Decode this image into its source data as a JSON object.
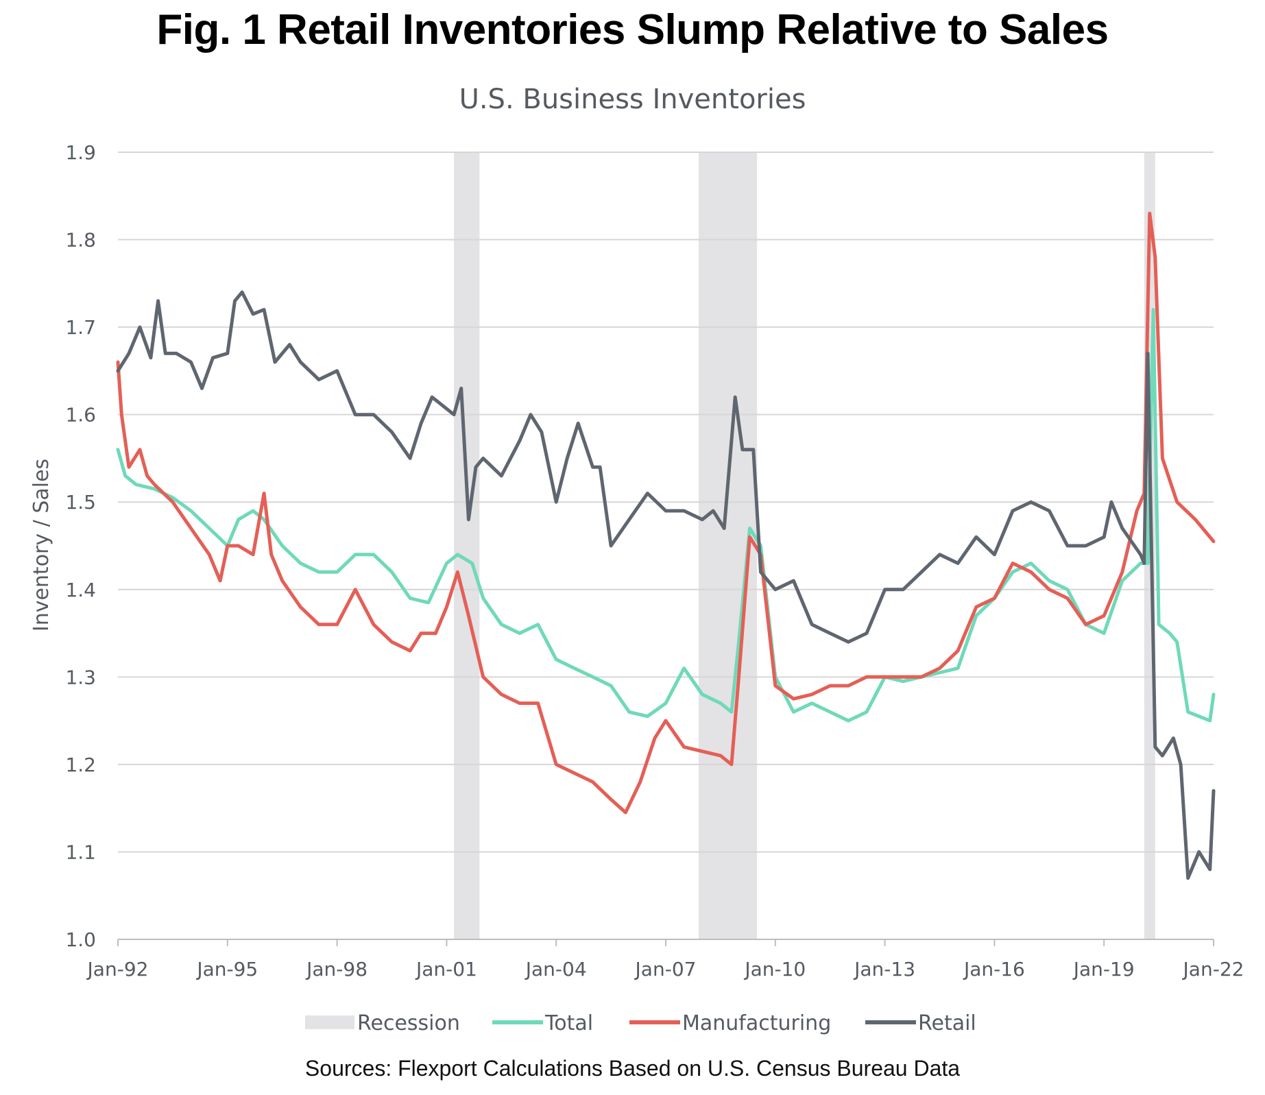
{
  "colors": {
    "recession": "#e3e2e4",
    "total": "#6fd9b9",
    "manufacturing": "#e45f56",
    "retail": "#5f6670",
    "grid": "#d6d6d6",
    "axis_text": "#555a60"
  },
  "chart_data": {
    "type": "line",
    "title": "Fig. 1 Retail Inventories Slump Relative to Sales",
    "subtitle": "U.S. Business Inventories",
    "ylabel": "Inventory / Sales",
    "xlabel": "",
    "ylim": [
      1.0,
      1.9
    ],
    "xlim": [
      1992.0,
      2022.0
    ],
    "yticks": [
      "1.0",
      "1.1",
      "1.2",
      "1.3",
      "1.4",
      "1.5",
      "1.6",
      "1.7",
      "1.8",
      "1.9"
    ],
    "xtick_labels": [
      "Jan-92",
      "Jan-95",
      "Jan-98",
      "Jan-01",
      "Jan-04",
      "Jan-07",
      "Jan-10",
      "Jan-13",
      "Jan-16",
      "Jan-19",
      "Jan-22"
    ],
    "xtick_years": [
      1992,
      1995,
      1998,
      2001,
      2004,
      2007,
      2010,
      2013,
      2016,
      2019,
      2022
    ],
    "grid": true,
    "legend_position": "bottom",
    "recessions": [
      {
        "start": 2001.2,
        "end": 2001.9
      },
      {
        "start": 2007.9,
        "end": 2009.5
      },
      {
        "start": 2020.1,
        "end": 2020.4
      }
    ],
    "series": [
      {
        "name": "Total",
        "key": "total",
        "x": [
          1992.0,
          1992.2,
          1992.5,
          1993.0,
          1993.5,
          1994.0,
          1994.5,
          1995.0,
          1995.3,
          1995.7,
          1996.0,
          1996.5,
          1997.0,
          1997.5,
          1998.0,
          1998.5,
          1999.0,
          1999.5,
          2000.0,
          2000.5,
          2001.0,
          2001.3,
          2001.7,
          2002.0,
          2002.5,
          2003.0,
          2003.5,
          2004.0,
          2004.5,
          2005.0,
          2005.5,
          2006.0,
          2006.5,
          2007.0,
          2007.5,
          2008.0,
          2008.5,
          2008.8,
          2009.0,
          2009.3,
          2009.6,
          2010.0,
          2010.5,
          2011.0,
          2011.5,
          2012.0,
          2012.5,
          2013.0,
          2013.5,
          2014.0,
          2014.5,
          2015.0,
          2015.5,
          2016.0,
          2016.5,
          2017.0,
          2017.5,
          2018.0,
          2018.5,
          2019.0,
          2019.5,
          2020.0,
          2020.2,
          2020.35,
          2020.5,
          2020.8,
          2021.0,
          2021.3,
          2021.6,
          2021.9,
          2022.0
        ],
        "values": [
          1.56,
          1.53,
          1.52,
          1.515,
          1.505,
          1.49,
          1.47,
          1.45,
          1.48,
          1.49,
          1.48,
          1.45,
          1.43,
          1.42,
          1.42,
          1.44,
          1.44,
          1.42,
          1.39,
          1.385,
          1.43,
          1.44,
          1.43,
          1.39,
          1.36,
          1.35,
          1.36,
          1.32,
          1.31,
          1.3,
          1.29,
          1.26,
          1.255,
          1.27,
          1.31,
          1.28,
          1.27,
          1.26,
          1.34,
          1.47,
          1.45,
          1.3,
          1.26,
          1.27,
          1.26,
          1.25,
          1.26,
          1.3,
          1.295,
          1.3,
          1.305,
          1.31,
          1.37,
          1.39,
          1.42,
          1.43,
          1.41,
          1.4,
          1.36,
          1.35,
          1.41,
          1.43,
          1.43,
          1.72,
          1.36,
          1.35,
          1.34,
          1.26,
          1.255,
          1.25,
          1.28
        ]
      },
      {
        "name": "Manufacturing",
        "key": "manufacturing",
        "x": [
          1992.0,
          1992.1,
          1992.3,
          1992.6,
          1992.8,
          1993.0,
          1993.5,
          1994.0,
          1994.5,
          1994.8,
          1995.0,
          1995.3,
          1995.7,
          1996.0,
          1996.2,
          1996.5,
          1997.0,
          1997.5,
          1998.0,
          1998.5,
          1999.0,
          1999.5,
          2000.0,
          2000.3,
          2000.7,
          2001.0,
          2001.3,
          2001.6,
          2002.0,
          2002.5,
          2003.0,
          2003.5,
          2004.0,
          2004.5,
          2005.0,
          2005.5,
          2005.9,
          2006.3,
          2006.7,
          2007.0,
          2007.5,
          2008.0,
          2008.5,
          2008.8,
          2009.0,
          2009.3,
          2009.6,
          2010.0,
          2010.5,
          2011.0,
          2011.5,
          2012.0,
          2012.5,
          2013.0,
          2013.5,
          2014.0,
          2014.5,
          2015.0,
          2015.5,
          2016.0,
          2016.5,
          2017.0,
          2017.5,
          2018.0,
          2018.5,
          2019.0,
          2019.5,
          2019.9,
          2020.1,
          2020.25,
          2020.4,
          2020.6,
          2021.0,
          2021.5,
          2022.0
        ],
        "values": [
          1.66,
          1.6,
          1.54,
          1.56,
          1.53,
          1.52,
          1.5,
          1.47,
          1.44,
          1.41,
          1.45,
          1.45,
          1.44,
          1.51,
          1.44,
          1.41,
          1.38,
          1.36,
          1.36,
          1.4,
          1.36,
          1.34,
          1.33,
          1.35,
          1.35,
          1.38,
          1.42,
          1.37,
          1.3,
          1.28,
          1.27,
          1.27,
          1.2,
          1.19,
          1.18,
          1.16,
          1.145,
          1.18,
          1.23,
          1.25,
          1.22,
          1.215,
          1.21,
          1.2,
          1.3,
          1.46,
          1.44,
          1.29,
          1.275,
          1.28,
          1.29,
          1.29,
          1.3,
          1.3,
          1.3,
          1.3,
          1.31,
          1.33,
          1.38,
          1.39,
          1.43,
          1.42,
          1.4,
          1.39,
          1.36,
          1.37,
          1.42,
          1.49,
          1.51,
          1.83,
          1.78,
          1.55,
          1.5,
          1.48,
          1.455
        ]
      },
      {
        "name": "Retail",
        "key": "retail",
        "x": [
          1992.0,
          1992.3,
          1992.6,
          1992.9,
          1993.1,
          1993.3,
          1993.6,
          1994.0,
          1994.3,
          1994.6,
          1995.0,
          1995.2,
          1995.4,
          1995.7,
          1996.0,
          1996.3,
          1996.7,
          1997.0,
          1997.5,
          1998.0,
          1998.5,
          1999.0,
          1999.5,
          2000.0,
          2000.3,
          2000.6,
          2000.9,
          2001.2,
          2001.4,
          2001.6,
          2001.8,
          2002.0,
          2002.5,
          2003.0,
          2003.3,
          2003.6,
          2004.0,
          2004.3,
          2004.6,
          2005.0,
          2005.2,
          2005.5,
          2006.0,
          2006.5,
          2007.0,
          2007.5,
          2008.0,
          2008.3,
          2008.6,
          2008.9,
          2009.1,
          2009.4,
          2009.6,
          2009.8,
          2010.0,
          2010.5,
          2011.0,
          2011.5,
          2012.0,
          2012.5,
          2013.0,
          2013.5,
          2014.0,
          2014.5,
          2015.0,
          2015.5,
          2016.0,
          2016.5,
          2017.0,
          2017.5,
          2018.0,
          2018.5,
          2019.0,
          2019.2,
          2019.5,
          2020.0,
          2020.1,
          2020.2,
          2020.4,
          2020.6,
          2020.9,
          2021.1,
          2021.3,
          2021.6,
          2021.9,
          2022.0
        ],
        "values": [
          1.65,
          1.67,
          1.7,
          1.665,
          1.73,
          1.67,
          1.67,
          1.66,
          1.63,
          1.665,
          1.67,
          1.73,
          1.74,
          1.715,
          1.72,
          1.66,
          1.68,
          1.66,
          1.64,
          1.65,
          1.6,
          1.6,
          1.58,
          1.55,
          1.59,
          1.62,
          1.61,
          1.6,
          1.63,
          1.48,
          1.54,
          1.55,
          1.53,
          1.57,
          1.6,
          1.58,
          1.5,
          1.55,
          1.59,
          1.54,
          1.54,
          1.45,
          1.48,
          1.51,
          1.49,
          1.49,
          1.48,
          1.49,
          1.47,
          1.62,
          1.56,
          1.56,
          1.42,
          1.41,
          1.4,
          1.41,
          1.36,
          1.35,
          1.34,
          1.35,
          1.4,
          1.4,
          1.42,
          1.44,
          1.43,
          1.46,
          1.44,
          1.49,
          1.5,
          1.49,
          1.45,
          1.45,
          1.46,
          1.5,
          1.47,
          1.44,
          1.43,
          1.67,
          1.22,
          1.21,
          1.23,
          1.2,
          1.07,
          1.1,
          1.08,
          1.17
        ]
      }
    ]
  },
  "legend": {
    "recession": "Recession",
    "total": "Total",
    "manufacturing": "Manufacturing",
    "retail": "Retail"
  },
  "source": "Sources: Flexport Calculations Based on U.S. Census Bureau Data"
}
